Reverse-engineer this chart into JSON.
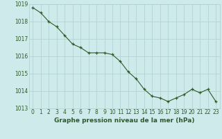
{
  "x": [
    0,
    1,
    2,
    3,
    4,
    5,
    6,
    7,
    8,
    9,
    10,
    11,
    12,
    13,
    14,
    15,
    16,
    17,
    18,
    19,
    20,
    21,
    22,
    23
  ],
  "y": [
    1018.8,
    1018.5,
    1018.0,
    1017.7,
    1017.2,
    1016.7,
    1016.5,
    1016.2,
    1016.2,
    1016.2,
    1016.1,
    1015.7,
    1015.1,
    1014.7,
    1014.1,
    1013.7,
    1013.6,
    1013.4,
    1013.6,
    1013.8,
    1014.1,
    1013.9,
    1014.1,
    1013.4
  ],
  "ylim": [
    1013.0,
    1019.0
  ],
  "yticks": [
    1013,
    1014,
    1015,
    1016,
    1017,
    1018,
    1019
  ],
  "xticks": [
    0,
    1,
    2,
    3,
    4,
    5,
    6,
    7,
    8,
    9,
    10,
    11,
    12,
    13,
    14,
    15,
    16,
    17,
    18,
    19,
    20,
    21,
    22,
    23
  ],
  "xlabel": "Graphe pression niveau de la mer (hPa)",
  "line_color": "#2d5a27",
  "marker": "+",
  "marker_color": "#2d5a27",
  "bg_color": "#ceeaea",
  "grid_color": "#aed0d0",
  "tick_label_fontsize": 5.5,
  "xlabel_fontsize": 6.5
}
